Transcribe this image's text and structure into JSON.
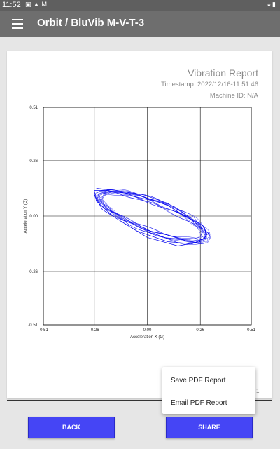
{
  "statusbar": {
    "time": "11:52",
    "left_icons": [
      "image-icon",
      "a-icon",
      "gmail-icon"
    ],
    "right_icons": [
      "wifi-icon",
      "battery-icon"
    ]
  },
  "appbar": {
    "title": "Orbit / BluVib M-V-T-3"
  },
  "report": {
    "title": "Vibration Report",
    "timestamp": "Timestamp: 2022/12/16-11:51:46",
    "machine": "Machine ID: N/A"
  },
  "chart_data": {
    "type": "scatter",
    "title": "",
    "xlabel": "Acceleration X (G)",
    "ylabel": "Acceleration Y (G)",
    "xlim": [
      -0.51,
      0.51
    ],
    "ylim": [
      -0.51,
      0.51
    ],
    "x_ticks": [
      "-0.51",
      "-0.26",
      "0.00",
      "0.26",
      "0.51"
    ],
    "y_ticks": [
      "0.51",
      "0.26",
      "0.00",
      "-0.26",
      "-0.51"
    ],
    "grid": true,
    "series": [
      {
        "color": "#0000ee",
        "description_points": [
          [
            -0.25,
            0.13
          ],
          [
            -0.15,
            0.12
          ],
          [
            -0.02,
            0.1
          ],
          [
            0.1,
            0.06
          ],
          [
            0.2,
            0.0
          ],
          [
            0.28,
            -0.05
          ],
          [
            0.29,
            -0.1
          ],
          [
            0.22,
            -0.13
          ],
          [
            0.1,
            -0.12
          ],
          [
            -0.05,
            -0.07
          ],
          [
            -0.17,
            0.0
          ],
          [
            -0.25,
            0.07
          ],
          [
            -0.26,
            0.12
          ],
          [
            -0.2,
            0.12
          ],
          [
            -0.05,
            0.1
          ],
          [
            0.1,
            0.05
          ],
          [
            0.22,
            -0.02
          ],
          [
            0.3,
            -0.08
          ],
          [
            0.26,
            -0.12
          ],
          [
            0.15,
            -0.14
          ],
          [
            0.0,
            -0.1
          ],
          [
            -0.12,
            -0.03
          ],
          [
            -0.22,
            0.03
          ],
          [
            -0.26,
            0.1
          ]
        ]
      }
    ]
  },
  "popup": {
    "items": [
      "Save PDF Report",
      "Email PDF Report"
    ]
  },
  "partial_text": "1",
  "buttons": {
    "back": "BACK",
    "share": "SHARE"
  }
}
